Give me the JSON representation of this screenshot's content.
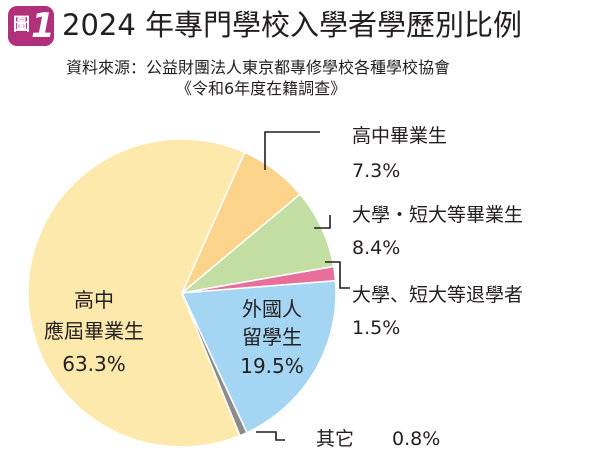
{
  "badge": {
    "kanji": "圖",
    "number": "1"
  },
  "title": "2024 年專門學校入學者學歷別比例",
  "source_line": "資料來源：公益財團法人東京都專修學校各種學校協會",
  "survey_line": "《令和6年度在籍調查》",
  "chart_data": {
    "type": "pie",
    "title": "2024 年專門學校入學者學歷別比例",
    "slices": [
      {
        "name": "高中畢業生",
        "value": 7.3,
        "value_label": "7.3%",
        "color": "#fbd38a"
      },
      {
        "name": "大學・短大等畢業生",
        "value": 8.4,
        "value_label": "8.4%",
        "color": "#c2dea2"
      },
      {
        "name": "大學、短大等退學者",
        "value": 1.5,
        "value_label": "1.5%",
        "color": "#e86f9c"
      },
      {
        "name": "外國人留學生",
        "name_lines": [
          "外國人",
          "留學生"
        ],
        "value": 19.5,
        "value_label": "19.5%",
        "color": "#a4d6f4"
      },
      {
        "name": "其它",
        "value": 0.8,
        "value_label": "0.8%",
        "color": "#8c8c8c"
      },
      {
        "name": "高中應屆畢業生",
        "name_lines": [
          "高中",
          "應屆畢業生"
        ],
        "value": 63.3,
        "value_label": "63.3%",
        "color": "#fee9ac"
      }
    ]
  }
}
